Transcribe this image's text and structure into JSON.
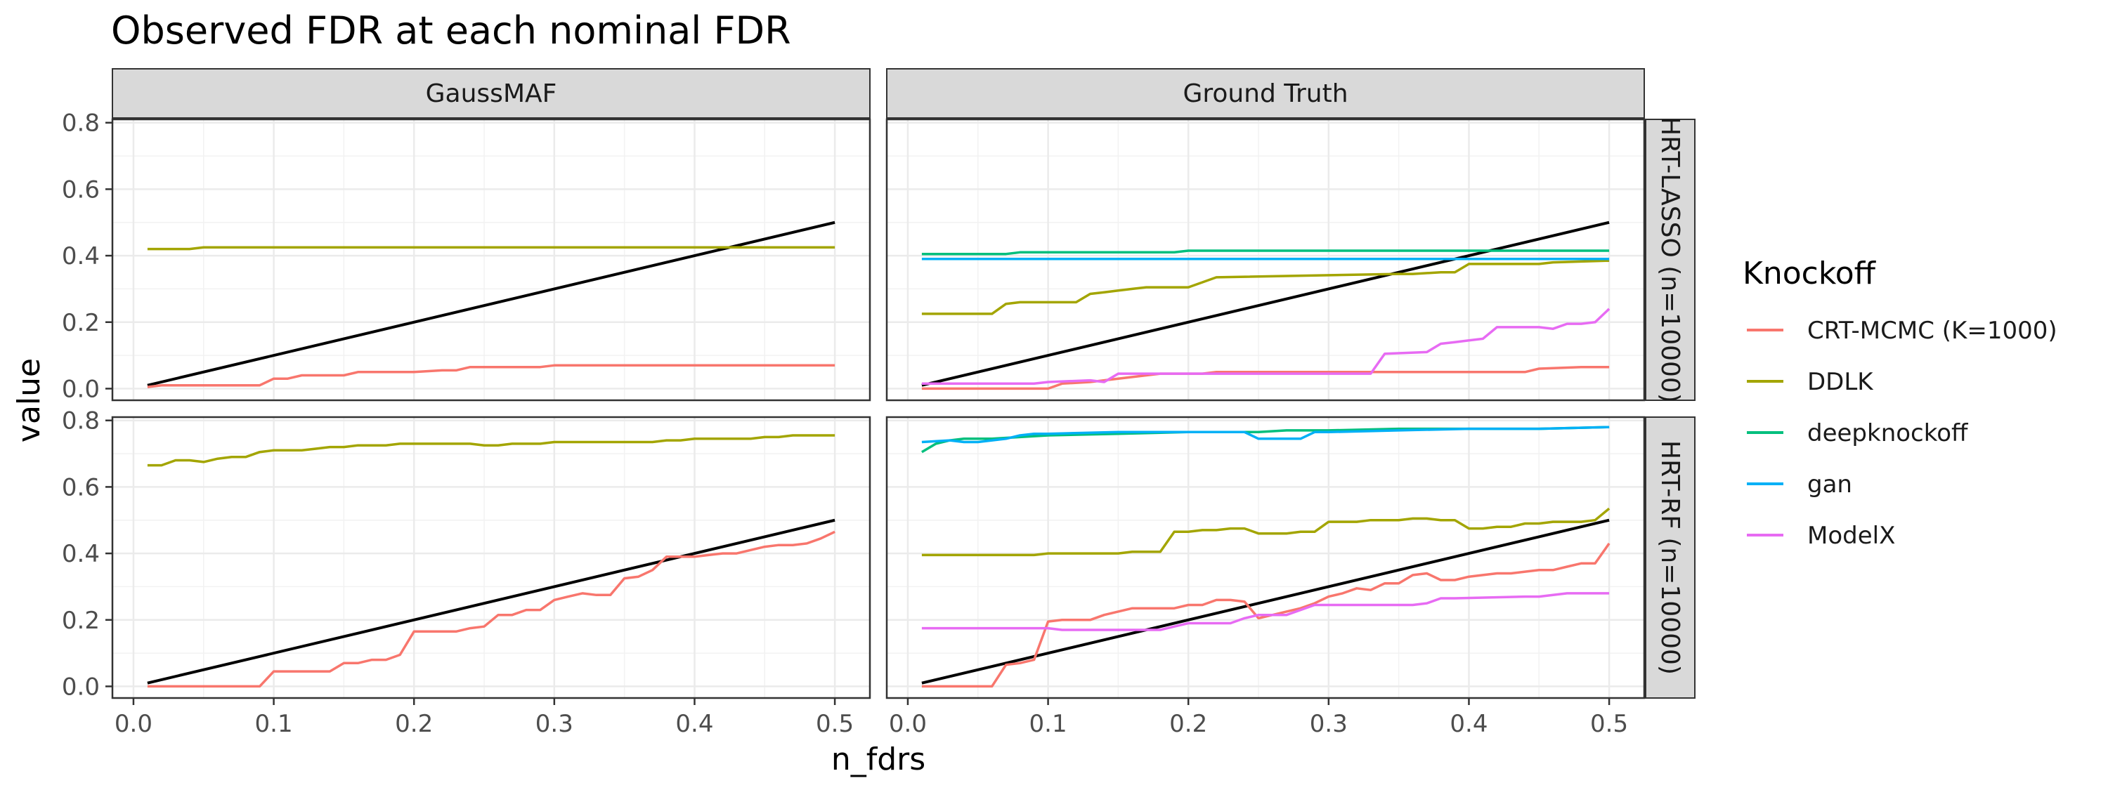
{
  "chart_data": {
    "type": "line",
    "title": "Observed FDR at each nominal FDR",
    "xlabel": "n_fdrs",
    "ylabel": "value",
    "xlim": [
      -0.015,
      0.525
    ],
    "ylim": [
      -0.035,
      0.81
    ],
    "x_ticks": [
      0.0,
      0.1,
      0.2,
      0.3,
      0.4,
      0.5
    ],
    "x_tick_labels": [
      "0.0",
      "0.1",
      "0.2",
      "0.3",
      "0.4",
      "0.5"
    ],
    "y_ticks": [
      0.0,
      0.2,
      0.4,
      0.6,
      0.8
    ],
    "y_tick_labels": [
      "0.0",
      "0.2",
      "0.4",
      "0.6",
      "0.8"
    ],
    "grid": true,
    "facet_columns": [
      "GaussMAF",
      "Ground Truth"
    ],
    "facet_rows": [
      "HRT-LASSO (n=10000)",
      "HRT-RF (n=10000)"
    ],
    "legend": {
      "title": "Knockoff",
      "position": "right",
      "entries": [
        {
          "name": "CRT-MCMC (K=1000)",
          "color": "#F8766D"
        },
        {
          "name": "DDLK",
          "color": "#A3A500"
        },
        {
          "name": "deepknockoff",
          "color": "#00BF7D"
        },
        {
          "name": "gan",
          "color": "#00B0F6"
        },
        {
          "name": "ModelX",
          "color": "#E76BF3"
        }
      ]
    },
    "reference_line": {
      "x": [
        0.01,
        0.5
      ],
      "y": [
        0.01,
        0.5
      ],
      "color": "#000000"
    },
    "panels": [
      {
        "row": 0,
        "col": 0,
        "series": [
          {
            "name": "CRT-MCMC (K=1000)",
            "color": "#F8766D",
            "x": [
              0.01,
              0.02,
              0.05,
              0.09,
              0.1,
              0.11,
              0.12,
              0.14,
              0.15,
              0.16,
              0.17,
              0.2,
              0.22,
              0.23,
              0.24,
              0.29,
              0.3,
              0.5
            ],
            "y": [
              0.005,
              0.01,
              0.01,
              0.01,
              0.03,
              0.03,
              0.04,
              0.04,
              0.04,
              0.05,
              0.05,
              0.05,
              0.055,
              0.055,
              0.065,
              0.065,
              0.07,
              0.07
            ]
          },
          {
            "name": "DDLK",
            "color": "#A3A500",
            "x": [
              0.01,
              0.04,
              0.05,
              0.5
            ],
            "y": [
              0.42,
              0.42,
              0.425,
              0.425
            ]
          }
        ]
      },
      {
        "row": 0,
        "col": 1,
        "series": [
          {
            "name": "CRT-MCMC (K=1000)",
            "color": "#F8766D",
            "x": [
              0.01,
              0.1,
              0.11,
              0.13,
              0.14,
              0.15,
              0.16,
              0.17,
              0.18,
              0.2,
              0.21,
              0.22,
              0.3,
              0.44,
              0.45,
              0.48,
              0.5
            ],
            "y": [
              0.0,
              0.0,
              0.015,
              0.02,
              0.025,
              0.03,
              0.035,
              0.04,
              0.045,
              0.045,
              0.045,
              0.05,
              0.05,
              0.05,
              0.06,
              0.065,
              0.065
            ]
          },
          {
            "name": "DDLK",
            "color": "#A3A500",
            "x": [
              0.01,
              0.06,
              0.07,
              0.08,
              0.12,
              0.13,
              0.14,
              0.15,
              0.16,
              0.17,
              0.2,
              0.21,
              0.22,
              0.35,
              0.36,
              0.38,
              0.39,
              0.4,
              0.45,
              0.46,
              0.5
            ],
            "y": [
              0.225,
              0.225,
              0.255,
              0.26,
              0.26,
              0.285,
              0.29,
              0.295,
              0.3,
              0.305,
              0.305,
              0.32,
              0.335,
              0.345,
              0.345,
              0.35,
              0.35,
              0.375,
              0.375,
              0.38,
              0.385
            ]
          },
          {
            "name": "deepknockoff",
            "color": "#00BF7D",
            "x": [
              0.01,
              0.07,
              0.08,
              0.19,
              0.2,
              0.5
            ],
            "y": [
              0.405,
              0.405,
              0.41,
              0.41,
              0.415,
              0.415
            ]
          },
          {
            "name": "gan",
            "color": "#00B0F6",
            "x": [
              0.01,
              0.07,
              0.08,
              0.5
            ],
            "y": [
              0.39,
              0.39,
              0.39,
              0.39
            ]
          },
          {
            "name": "ModelX",
            "color": "#E76BF3",
            "x": [
              0.01,
              0.09,
              0.1,
              0.13,
              0.14,
              0.15,
              0.16,
              0.17,
              0.18,
              0.19,
              0.2,
              0.21,
              0.22,
              0.33,
              0.34,
              0.37,
              0.38,
              0.39,
              0.4,
              0.41,
              0.42,
              0.43,
              0.44,
              0.45,
              0.46,
              0.47,
              0.48,
              0.49,
              0.5
            ],
            "y": [
              0.015,
              0.015,
              0.02,
              0.025,
              0.02,
              0.045,
              0.045,
              0.045,
              0.045,
              0.045,
              0.045,
              0.045,
              0.045,
              0.045,
              0.105,
              0.11,
              0.135,
              0.14,
              0.145,
              0.15,
              0.185,
              0.185,
              0.185,
              0.185,
              0.18,
              0.195,
              0.195,
              0.2,
              0.24
            ]
          }
        ]
      },
      {
        "row": 1,
        "col": 0,
        "series": [
          {
            "name": "CRT-MCMC (K=1000)",
            "color": "#F8766D",
            "x": [
              0.01,
              0.09,
              0.1,
              0.14,
              0.15,
              0.16,
              0.17,
              0.18,
              0.19,
              0.2,
              0.21,
              0.22,
              0.23,
              0.24,
              0.25,
              0.26,
              0.27,
              0.28,
              0.29,
              0.3,
              0.31,
              0.32,
              0.33,
              0.34,
              0.35,
              0.36,
              0.37,
              0.38,
              0.39,
              0.4,
              0.41,
              0.42,
              0.43,
              0.44,
              0.45,
              0.46,
              0.47,
              0.48,
              0.49,
              0.5
            ],
            "y": [
              0.0,
              0.0,
              0.045,
              0.045,
              0.07,
              0.07,
              0.08,
              0.08,
              0.095,
              0.165,
              0.165,
              0.165,
              0.165,
              0.175,
              0.18,
              0.215,
              0.215,
              0.23,
              0.23,
              0.26,
              0.27,
              0.28,
              0.275,
              0.275,
              0.325,
              0.33,
              0.35,
              0.39,
              0.39,
              0.39,
              0.395,
              0.4,
              0.4,
              0.41,
              0.42,
              0.425,
              0.425,
              0.43,
              0.445,
              0.465
            ]
          },
          {
            "name": "DDLK",
            "color": "#A3A500",
            "x": [
              0.01,
              0.02,
              0.03,
              0.04,
              0.05,
              0.06,
              0.07,
              0.08,
              0.09,
              0.1,
              0.11,
              0.12,
              0.13,
              0.14,
              0.15,
              0.16,
              0.17,
              0.18,
              0.19,
              0.2,
              0.22,
              0.24,
              0.25,
              0.26,
              0.27,
              0.28,
              0.29,
              0.3,
              0.35,
              0.36,
              0.37,
              0.38,
              0.39,
              0.4,
              0.42,
              0.44,
              0.45,
              0.46,
              0.47,
              0.48,
              0.5
            ],
            "y": [
              0.665,
              0.665,
              0.68,
              0.68,
              0.675,
              0.685,
              0.69,
              0.69,
              0.705,
              0.71,
              0.71,
              0.71,
              0.715,
              0.72,
              0.72,
              0.725,
              0.725,
              0.725,
              0.73,
              0.73,
              0.73,
              0.73,
              0.725,
              0.725,
              0.73,
              0.73,
              0.73,
              0.735,
              0.735,
              0.735,
              0.735,
              0.74,
              0.74,
              0.745,
              0.745,
              0.745,
              0.75,
              0.75,
              0.755,
              0.755,
              0.755
            ]
          }
        ]
      },
      {
        "row": 1,
        "col": 1,
        "series": [
          {
            "name": "CRT-MCMC (K=1000)",
            "color": "#F8766D",
            "x": [
              0.01,
              0.06,
              0.07,
              0.08,
              0.09,
              0.1,
              0.11,
              0.12,
              0.13,
              0.14,
              0.15,
              0.16,
              0.17,
              0.18,
              0.19,
              0.2,
              0.21,
              0.22,
              0.23,
              0.24,
              0.25,
              0.26,
              0.27,
              0.28,
              0.29,
              0.3,
              0.31,
              0.32,
              0.33,
              0.34,
              0.35,
              0.36,
              0.37,
              0.38,
              0.39,
              0.4,
              0.41,
              0.42,
              0.43,
              0.44,
              0.45,
              0.46,
              0.47,
              0.48,
              0.49,
              0.5
            ],
            "y": [
              0.0,
              0.0,
              0.065,
              0.07,
              0.08,
              0.195,
              0.2,
              0.2,
              0.2,
              0.215,
              0.225,
              0.235,
              0.235,
              0.235,
              0.235,
              0.245,
              0.245,
              0.26,
              0.26,
              0.255,
              0.205,
              0.215,
              0.225,
              0.235,
              0.25,
              0.27,
              0.28,
              0.295,
              0.29,
              0.31,
              0.31,
              0.335,
              0.34,
              0.32,
              0.32,
              0.33,
              0.335,
              0.34,
              0.34,
              0.345,
              0.35,
              0.35,
              0.36,
              0.37,
              0.37,
              0.43
            ]
          },
          {
            "name": "DDLK",
            "color": "#A3A500",
            "x": [
              0.01,
              0.09,
              0.1,
              0.15,
              0.16,
              0.18,
              0.19,
              0.2,
              0.21,
              0.22,
              0.23,
              0.24,
              0.25,
              0.26,
              0.27,
              0.28,
              0.29,
              0.3,
              0.31,
              0.32,
              0.33,
              0.34,
              0.35,
              0.36,
              0.37,
              0.38,
              0.39,
              0.4,
              0.41,
              0.42,
              0.43,
              0.44,
              0.45,
              0.46,
              0.47,
              0.48,
              0.49,
              0.5
            ],
            "y": [
              0.395,
              0.395,
              0.4,
              0.4,
              0.405,
              0.405,
              0.465,
              0.465,
              0.47,
              0.47,
              0.475,
              0.475,
              0.46,
              0.46,
              0.46,
              0.465,
              0.465,
              0.495,
              0.495,
              0.495,
              0.5,
              0.5,
              0.5,
              0.505,
              0.505,
              0.5,
              0.5,
              0.475,
              0.475,
              0.48,
              0.48,
              0.49,
              0.49,
              0.495,
              0.495,
              0.495,
              0.5,
              0.535
            ]
          },
          {
            "name": "deepknockoff",
            "color": "#00BF7D",
            "x": [
              0.01,
              0.02,
              0.03,
              0.04,
              0.06,
              0.08,
              0.1,
              0.15,
              0.2,
              0.25,
              0.27,
              0.3,
              0.35,
              0.4,
              0.45,
              0.5
            ],
            "y": [
              0.705,
              0.73,
              0.74,
              0.745,
              0.745,
              0.75,
              0.755,
              0.76,
              0.765,
              0.765,
              0.77,
              0.77,
              0.775,
              0.775,
              0.775,
              0.78
            ]
          },
          {
            "name": "gan",
            "color": "#00B0F6",
            "x": [
              0.01,
              0.03,
              0.04,
              0.05,
              0.06,
              0.07,
              0.08,
              0.09,
              0.1,
              0.15,
              0.2,
              0.24,
              0.25,
              0.28,
              0.29,
              0.3,
              0.35,
              0.4,
              0.45,
              0.5
            ],
            "y": [
              0.735,
              0.74,
              0.735,
              0.735,
              0.74,
              0.745,
              0.755,
              0.76,
              0.76,
              0.765,
              0.765,
              0.765,
              0.745,
              0.745,
              0.765,
              0.765,
              0.77,
              0.775,
              0.775,
              0.78
            ]
          },
          {
            "name": "ModelX",
            "color": "#E76BF3",
            "x": [
              0.01,
              0.1,
              0.11,
              0.18,
              0.19,
              0.2,
              0.23,
              0.24,
              0.25,
              0.27,
              0.28,
              0.29,
              0.3,
              0.31,
              0.36,
              0.37,
              0.38,
              0.39,
              0.44,
              0.45,
              0.47,
              0.5
            ],
            "y": [
              0.175,
              0.175,
              0.17,
              0.17,
              0.18,
              0.19,
              0.19,
              0.205,
              0.215,
              0.215,
              0.23,
              0.245,
              0.245,
              0.245,
              0.245,
              0.25,
              0.265,
              0.265,
              0.27,
              0.27,
              0.28,
              0.28
            ]
          }
        ]
      }
    ]
  }
}
